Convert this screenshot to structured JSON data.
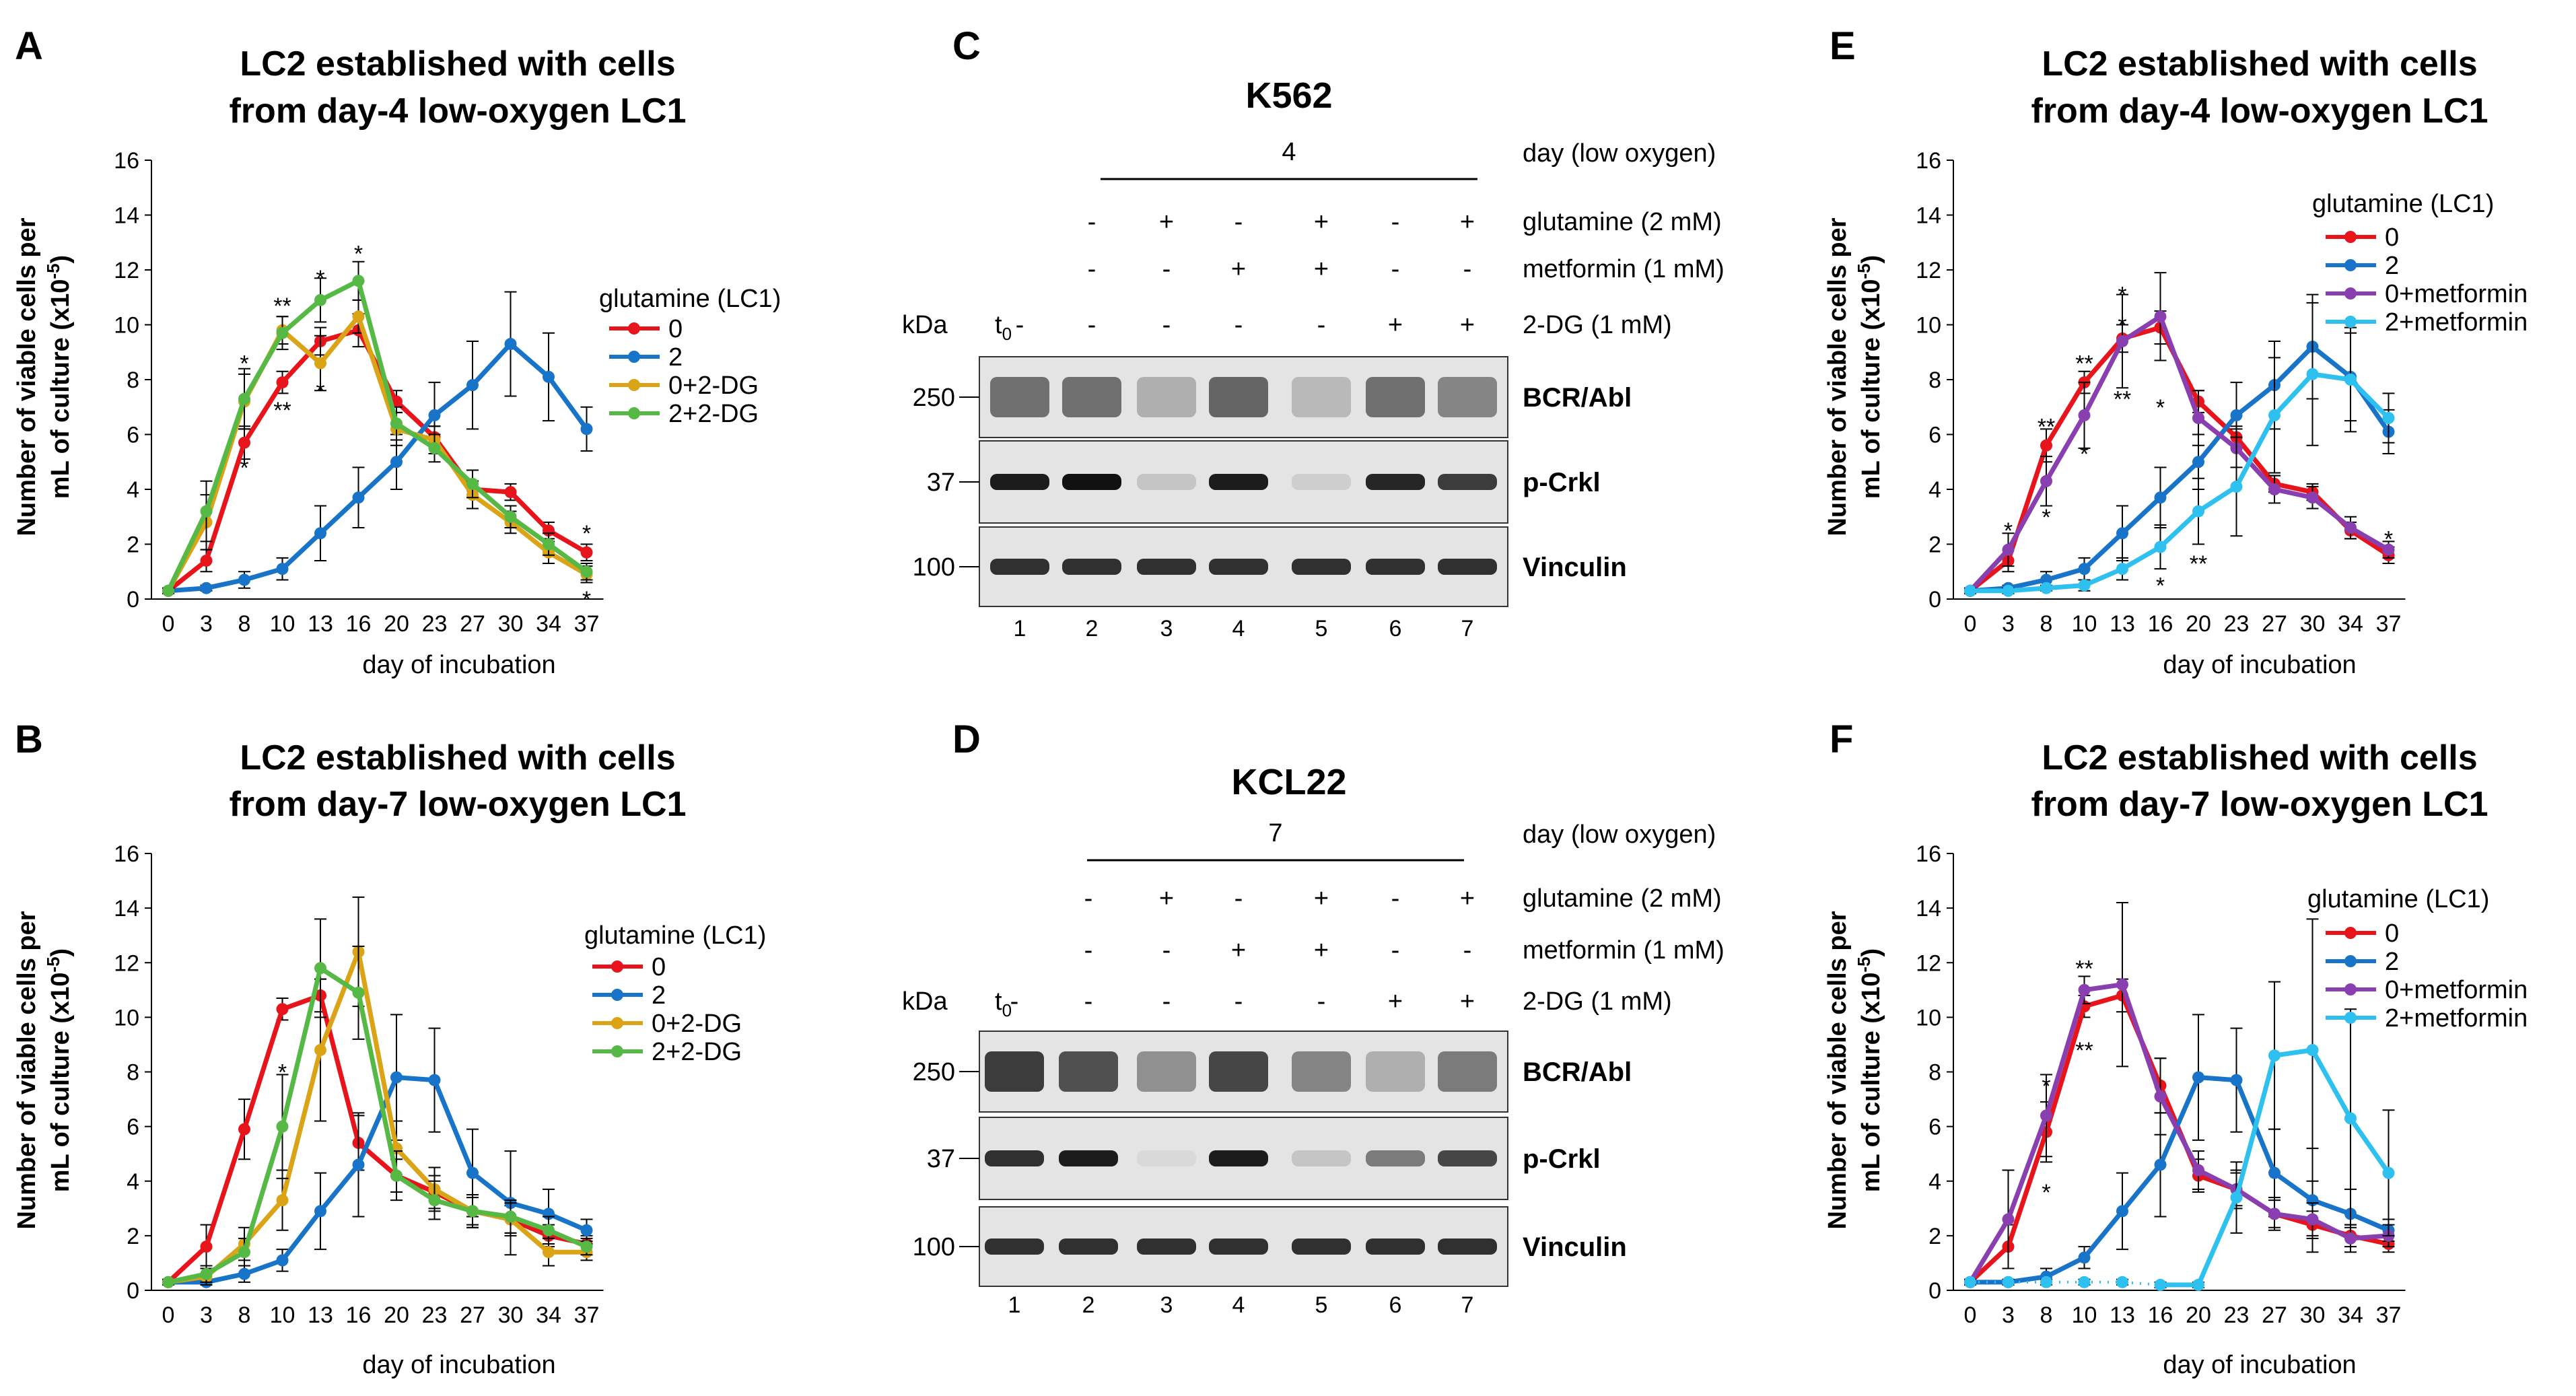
{
  "panels": {
    "A": {
      "letter": "A",
      "title_line1": "LC2 established with cells",
      "title_line2": "from day-4 low-oxygen LC1",
      "ylabel_line1": "Number of viable cells per",
      "ylabel_line2": "mL of culture (x10",
      "ylabel_sup": "-5",
      "ylabel_end": ")",
      "xlabel": "day of incubation",
      "legend_title": "glutamine (LC1)"
    },
    "B": {
      "letter": "B",
      "title_line1": "LC2 established with cells",
      "title_line2": "from day-7 low-oxygen LC1",
      "ylabel_line1": "Number of viable cells per",
      "ylabel_line2": "mL of culture (x10",
      "ylabel_sup": "-5",
      "ylabel_end": ")",
      "xlabel": "day of incubation",
      "legend_title": "glutamine (LC1)"
    },
    "E": {
      "letter": "E",
      "title_line1": "LC2 established with cells",
      "title_line2": "from day-4 low-oxygen LC1",
      "ylabel_line1": "Number of viable cells per",
      "ylabel_line2": "mL of culture (x10",
      "ylabel_sup": "-5",
      "ylabel_end": ")",
      "xlabel": "day of incubation",
      "legend_title": "glutamine (LC1)"
    },
    "F": {
      "letter": "F",
      "title_line1": "LC2 established with cells",
      "title_line2": "from day-7 low-oxygen LC1",
      "ylabel_line1": "Number of viable cells per",
      "ylabel_line2": "mL of culture (x10",
      "ylabel_sup": "-5",
      "ylabel_end": ")",
      "xlabel": "day of incubation",
      "legend_title": "glutamine (LC1)"
    },
    "C": {
      "letter": "C",
      "title": "K562",
      "day_value": "4",
      "day_label": "day (low oxygen)",
      "kda_label": "kDa",
      "t0_main": "t",
      "t0_sub": "0",
      "rows": [
        {
          "label": "glutamine (2 mM)",
          "signs": [
            "-",
            "+",
            "-",
            "+",
            "-",
            "+"
          ]
        },
        {
          "label": "metformin (1 mM)",
          "signs": [
            "-",
            "-",
            "+",
            "+",
            "-",
            "-"
          ]
        },
        {
          "label": "2-DG (1 mM)",
          "signs": [
            "-",
            "-",
            "-",
            "-",
            "+",
            "+"
          ],
          "t0": "-"
        }
      ],
      "blots": [
        {
          "label": "BCR/Abl",
          "marker": "250"
        },
        {
          "label": "p-Crkl",
          "marker": "37"
        },
        {
          "label": "Vinculin",
          "marker": "100"
        }
      ],
      "lanes": [
        "1",
        "2",
        "3",
        "4",
        "5",
        "6",
        "7"
      ]
    },
    "D": {
      "letter": "D",
      "title": "KCL22",
      "day_value": "7",
      "day_label": "day (low oxygen)",
      "kda_label": "kDa",
      "t0_main": "t",
      "t0_sub": "0",
      "rows": [
        {
          "label": "glutamine (2 mM)",
          "signs": [
            "-",
            "+",
            "-",
            "+",
            "-",
            "+"
          ]
        },
        {
          "label": "metformin (1 mM)",
          "signs": [
            "-",
            "-",
            "+",
            "+",
            "-",
            "-"
          ]
        },
        {
          "label": "2-DG (1 mM)",
          "signs": [
            "-",
            "-",
            "-",
            "-",
            "+",
            "+"
          ],
          "t0": "-"
        }
      ],
      "blots": [
        {
          "label": "BCR/Abl",
          "marker": "250"
        },
        {
          "label": "p-Crkl",
          "marker": "37"
        },
        {
          "label": "Vinculin",
          "marker": "100"
        }
      ],
      "lanes": [
        "1",
        "2",
        "3",
        "4",
        "5",
        "6",
        "7"
      ]
    }
  },
  "chart_data": [
    {
      "id": "A",
      "type": "line",
      "title": "LC2 established with cells from day-4 low-oxygen LC1",
      "xlabel": "day of incubation",
      "ylabel": "Number of viable cells per mL of culture (x10-5)",
      "categories": [
        "0",
        "3",
        "8",
        "10",
        "13",
        "16",
        "20",
        "23",
        "27",
        "30",
        "34",
        "37"
      ],
      "ylim": [
        0,
        16
      ],
      "yticks": [
        0,
        2,
        4,
        6,
        8,
        10,
        12,
        14,
        16
      ],
      "legend_title": "glutamine (LC1)",
      "series": [
        {
          "name": "0",
          "color": "#e8141c",
          "start": 0,
          "values": [
            0.3,
            1.4,
            5.7,
            7.9,
            9.4,
            9.8,
            7.2,
            5.9,
            4.0,
            3.9,
            2.5,
            1.7
          ],
          "errors": [
            0.1,
            0.4,
            0.6,
            0.4,
            0.5,
            0.6,
            0.4,
            0.4,
            0.3,
            0.3,
            0.3,
            0.3
          ]
        },
        {
          "name": "2",
          "color": "#1874c8",
          "start": 0,
          "values": [
            0.3,
            0.4,
            0.7,
            1.1,
            2.4,
            3.7,
            5.0,
            6.7,
            7.8,
            9.3,
            8.1,
            6.2
          ],
          "errors": [
            0.1,
            0.1,
            0.3,
            0.4,
            1.0,
            1.1,
            1.0,
            1.2,
            1.6,
            1.9,
            1.6,
            0.8
          ]
        },
        {
          "name": "0+2-DG",
          "color": "#dba316",
          "start": 0,
          "values": [
            0.3,
            2.8,
            7.2,
            9.8,
            8.6,
            10.3,
            6.2,
            5.8,
            3.8,
            2.8,
            1.7,
            0.9
          ],
          "errors": [
            0.1,
            1.0,
            1.0,
            0.5,
            1.0,
            0.6,
            0.6,
            0.5,
            0.5,
            0.4,
            0.4,
            0.3
          ]
        },
        {
          "name": "2+2-DG",
          "color": "#56b946",
          "start": 0,
          "values": [
            0.3,
            3.2,
            7.3,
            9.7,
            10.9,
            11.6,
            6.4,
            5.5,
            4.2,
            3.0,
            2.0,
            1.0
          ],
          "errors": [
            0.1,
            1.1,
            1.1,
            0.6,
            0.8,
            0.7,
            0.6,
            0.5,
            0.5,
            0.4,
            0.4,
            0.3
          ]
        }
      ],
      "annotations": [
        {
          "text": "*",
          "x": "8",
          "y": 8.6
        },
        {
          "text": "*",
          "x": "8",
          "y": 4.8
        },
        {
          "text": "**",
          "x": "10",
          "y": 10.7
        },
        {
          "text": "**",
          "x": "10",
          "y": 6.9
        },
        {
          "text": "*",
          "x": "13",
          "y": 11.7
        },
        {
          "text": "*",
          "x": "13",
          "y": 7.6
        },
        {
          "text": "*",
          "x": "16",
          "y": 12.6
        },
        {
          "text": "*",
          "x": "37",
          "y": 2.4
        },
        {
          "text": "*",
          "x": "37",
          "y": 0.0
        }
      ]
    },
    {
      "id": "B",
      "type": "line",
      "title": "LC2 established with cells from day-7 low-oxygen LC1",
      "xlabel": "day of incubation",
      "ylabel": "Number of viable cells per mL of culture (x10-5)",
      "categories": [
        "0",
        "3",
        "8",
        "10",
        "13",
        "16",
        "20",
        "23",
        "27",
        "30",
        "34",
        "37"
      ],
      "ylim": [
        0,
        16
      ],
      "yticks": [
        0,
        2,
        4,
        6,
        8,
        10,
        12,
        14,
        16
      ],
      "legend_title": "glutamine (LC1)",
      "series": [
        {
          "name": "0",
          "color": "#e8141c",
          "start": 0,
          "values": [
            0.3,
            1.6,
            5.9,
            10.3,
            10.8,
            5.4,
            4.2,
            3.6,
            2.9,
            2.6,
            2.0,
            1.7
          ],
          "errors": [
            0.1,
            0.8,
            1.1,
            0.4,
            0.6,
            1.0,
            0.6,
            0.6,
            0.5,
            0.5,
            0.4,
            0.3
          ]
        },
        {
          "name": "2",
          "color": "#1874c8",
          "start": 0,
          "values": [
            0.3,
            0.3,
            0.6,
            1.1,
            2.9,
            4.6,
            7.8,
            7.7,
            4.3,
            3.2,
            2.8,
            2.2
          ],
          "errors": [
            0.1,
            0.1,
            0.3,
            0.4,
            1.4,
            1.9,
            2.3,
            1.9,
            1.6,
            1.9,
            0.9,
            0.4
          ]
        },
        {
          "name": "0+2-DG",
          "color": "#dba316",
          "start": 0,
          "values": [
            0.3,
            0.5,
            1.7,
            3.3,
            8.8,
            12.4,
            5.2,
            3.7,
            2.9,
            2.6,
            1.4,
            1.4
          ],
          "errors": [
            0.1,
            0.3,
            0.6,
            1.1,
            2.6,
            2.0,
            1.0,
            0.8,
            0.6,
            0.6,
            0.5,
            0.3
          ]
        },
        {
          "name": "2+2-DG",
          "color": "#56b946",
          "start": 0,
          "values": [
            0.3,
            0.6,
            1.4,
            6.0,
            11.8,
            10.9,
            4.2,
            3.3,
            2.9,
            2.7,
            2.2,
            1.6
          ],
          "errors": [
            0.1,
            0.3,
            0.5,
            1.9,
            1.8,
            1.7,
            0.9,
            0.7,
            0.6,
            0.6,
            0.5,
            0.3
          ]
        }
      ],
      "annotations": [
        {
          "text": "*",
          "x": "10",
          "y": 8.0
        }
      ]
    },
    {
      "id": "E",
      "type": "line",
      "title": "LC2 established with cells from day-4 low-oxygen LC1",
      "xlabel": "day of incubation",
      "ylabel": "Number of viable cells per mL of culture (x10-5)",
      "categories": [
        "0",
        "3",
        "8",
        "10",
        "13",
        "16",
        "20",
        "23",
        "27",
        "30",
        "34",
        "37"
      ],
      "ylim": [
        0,
        16
      ],
      "yticks": [
        0,
        2,
        4,
        6,
        8,
        10,
        12,
        14,
        16
      ],
      "legend_title": "glutamine (LC1)",
      "series": [
        {
          "name": "0",
          "color": "#e8141c",
          "start": 0,
          "values": [
            0.3,
            1.4,
            5.6,
            7.9,
            9.5,
            9.9,
            7.2,
            5.9,
            4.2,
            3.9,
            2.5,
            1.6
          ],
          "errors": [
            0.1,
            0.4,
            0.6,
            0.4,
            0.5,
            0.6,
            0.4,
            0.4,
            0.3,
            0.3,
            0.3,
            0.3
          ]
        },
        {
          "name": "2",
          "color": "#1874c8",
          "start": 0,
          "values": [
            0.3,
            0.4,
            0.7,
            1.1,
            2.4,
            3.7,
            5.0,
            6.7,
            7.8,
            9.2,
            8.1,
            6.1
          ],
          "errors": [
            0.1,
            0.1,
            0.3,
            0.4,
            1.0,
            1.1,
            1.0,
            1.2,
            1.6,
            1.9,
            1.6,
            0.8
          ]
        },
        {
          "name": "0+metformin",
          "color": "#8a3fb0",
          "start": 0,
          "values": [
            0.3,
            1.8,
            4.3,
            6.7,
            9.4,
            10.3,
            6.6,
            5.5,
            4.0,
            3.7,
            2.6,
            1.8
          ],
          "errors": [
            0.1,
            0.6,
            0.9,
            1.2,
            1.7,
            1.6,
            1.0,
            0.7,
            0.5,
            0.4,
            0.4,
            0.3
          ]
        },
        {
          "name": "2+metformin",
          "color": "#2ec0ee",
          "start": 0,
          "values": [
            0.3,
            0.3,
            0.4,
            0.5,
            1.1,
            1.9,
            3.2,
            4.1,
            6.7,
            8.2,
            8.0,
            6.6
          ],
          "errors": [
            0.1,
            0.1,
            0.1,
            0.2,
            0.4,
            0.8,
            1.2,
            1.8,
            2.1,
            2.6,
            1.9,
            0.9
          ]
        }
      ],
      "annotations": [
        {
          "text": "*",
          "x": "3",
          "y": 2.5
        },
        {
          "text": "**",
          "x": "8",
          "y": 6.3
        },
        {
          "text": "*",
          "x": "8",
          "y": 3.0
        },
        {
          "text": "**",
          "x": "10",
          "y": 8.6
        },
        {
          "text": "*",
          "x": "10",
          "y": 5.3
        },
        {
          "text": "*",
          "x": "13",
          "y": 11.1
        },
        {
          "text": "*",
          "x": "13",
          "y": 10.0
        },
        {
          "text": "**",
          "x": "13",
          "y": 7.3
        },
        {
          "text": "*",
          "x": "16",
          "y": 7.0
        },
        {
          "text": "*",
          "x": "16",
          "y": 0.5
        },
        {
          "text": "**",
          "x": "20",
          "y": 1.3
        },
        {
          "text": "*",
          "x": "37",
          "y": 2.2
        }
      ]
    },
    {
      "id": "F",
      "type": "line",
      "title": "LC2 established with cells from day-7 low-oxygen LC1",
      "xlabel": "day of incubation",
      "ylabel": "Number of viable cells per mL of culture (x10-5)",
      "categories": [
        "0",
        "3",
        "8",
        "10",
        "13",
        "16",
        "20",
        "23",
        "27",
        "30",
        "34",
        "37"
      ],
      "ylim": [
        0,
        16
      ],
      "yticks": [
        0,
        2,
        4,
        6,
        8,
        10,
        12,
        14,
        16
      ],
      "legend_title": "glutamine (LC1)",
      "series": [
        {
          "name": "0",
          "color": "#e8141c",
          "start": 0,
          "values": [
            0.3,
            1.6,
            5.8,
            10.4,
            10.8,
            7.5,
            4.2,
            3.7,
            2.8,
            2.4,
            2.0,
            1.7
          ],
          "errors": [
            0.1,
            0.8,
            1.1,
            0.4,
            0.6,
            1.0,
            0.6,
            0.6,
            0.5,
            0.5,
            0.4,
            0.3
          ]
        },
        {
          "name": "2",
          "color": "#1874c8",
          "start": 0,
          "values": [
            0.3,
            0.3,
            0.5,
            1.2,
            2.9,
            4.6,
            7.8,
            7.7,
            4.3,
            3.3,
            2.8,
            2.2
          ],
          "errors": [
            0.1,
            0.1,
            0.3,
            0.4,
            1.4,
            1.9,
            2.3,
            1.9,
            1.6,
            1.9,
            0.9,
            0.4
          ]
        },
        {
          "name": "0+metformin",
          "color": "#8a3fb0",
          "start": 0,
          "values": [
            0.3,
            2.6,
            6.4,
            11.0,
            11.2,
            7.1,
            4.4,
            3.7,
            2.8,
            2.6,
            1.9,
            2.0
          ],
          "errors": [
            0.1,
            1.8,
            1.5,
            0.5,
            3.0,
            1.4,
            0.7,
            0.7,
            0.6,
            0.6,
            0.5,
            0.4
          ]
        },
        {
          "name": "2+metformin",
          "color": "#2ec0ee",
          "start": 5,
          "values": [
            0.3,
            0.3,
            0.3,
            0.3,
            0.3,
            0.2,
            0.2,
            3.4,
            8.6,
            8.8,
            6.3,
            4.3
          ],
          "errors": [
            0.1,
            0.1,
            0.1,
            0.1,
            0.1,
            0.1,
            0.1,
            1.3,
            2.7,
            4.8,
            4.0,
            2.3
          ]
        }
      ],
      "annotations": [
        {
          "text": "*",
          "x": "8",
          "y": 7.5
        },
        {
          "text": "*",
          "x": "8",
          "y": 3.6
        },
        {
          "text": "**",
          "x": "10",
          "y": 11.8
        },
        {
          "text": "**",
          "x": "10",
          "y": 8.8
        }
      ]
    }
  ]
}
